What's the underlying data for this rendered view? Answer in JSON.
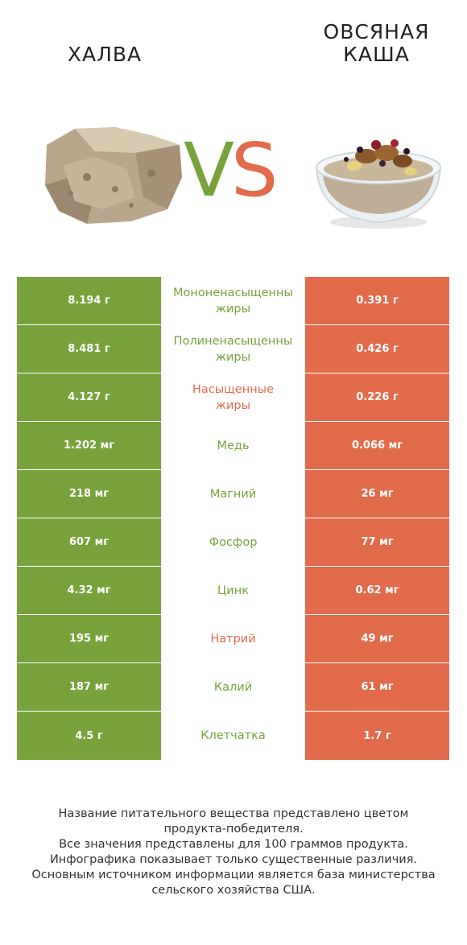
{
  "header": {
    "left_title": "ХАЛВА",
    "right_title_line1": "ОВСЯНАЯ",
    "right_title_line2": "КАША",
    "vs_v": "V",
    "vs_s": "S"
  },
  "colors": {
    "left_winner": "#77a23c",
    "right_winner": "#e16b4b"
  },
  "rows": [
    {
      "left": "8.194 г",
      "nutrient_line1": "Мононенасыщенны",
      "nutrient_line2": "жиры",
      "right": "0.391 г",
      "winner": "left"
    },
    {
      "left": "8.481 г",
      "nutrient_line1": "Полиненасыщенны",
      "nutrient_line2": "жиры",
      "right": "0.426 г",
      "winner": "left"
    },
    {
      "left": "4.127 г",
      "nutrient_line1": "Насыщенные",
      "nutrient_line2": "жиры",
      "right": "0.226 г",
      "winner": "right"
    },
    {
      "left": "1.202 мг",
      "nutrient_line1": "Медь",
      "nutrient_line2": "",
      "right": "0.066 мг",
      "winner": "left"
    },
    {
      "left": "218 мг",
      "nutrient_line1": "Магний",
      "nutrient_line2": "",
      "right": "26 мг",
      "winner": "left"
    },
    {
      "left": "607 мг",
      "nutrient_line1": "Фосфор",
      "nutrient_line2": "",
      "right": "77 мг",
      "winner": "left"
    },
    {
      "left": "4.32 мг",
      "nutrient_line1": "Цинк",
      "nutrient_line2": "",
      "right": "0.62 мг",
      "winner": "left"
    },
    {
      "left": "195 мг",
      "nutrient_line1": "Натрий",
      "nutrient_line2": "",
      "right": "49 мг",
      "winner": "right"
    },
    {
      "left": "187 мг",
      "nutrient_line1": "Калий",
      "nutrient_line2": "",
      "right": "61 мг",
      "winner": "left"
    },
    {
      "left": "4.5 г",
      "nutrient_line1": "Клетчатка",
      "nutrient_line2": "",
      "right": "1.7 г",
      "winner": "left"
    }
  ],
  "footer": {
    "line1": "Название питательного вещества представлено цветом",
    "line2": "продукта-победителя.",
    "line3": "Все значения представлены для 100 граммов продукта.",
    "line4": "Инфографика показывает только существенные различия.",
    "line5": "Основным источником информации является база министерства",
    "line6": "сельского хозяйства США."
  }
}
